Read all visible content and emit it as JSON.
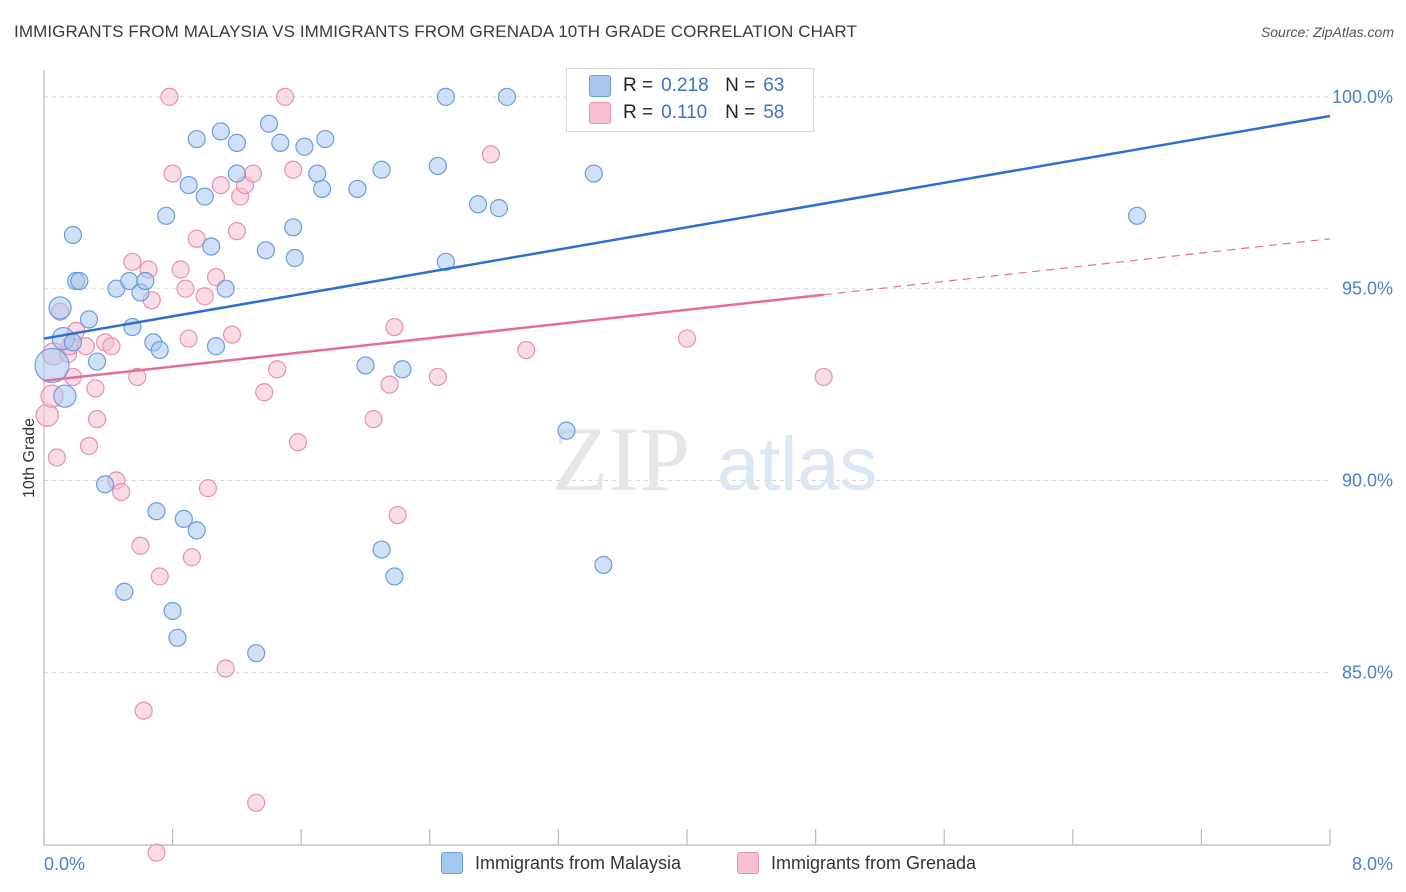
{
  "header": {
    "title": "IMMIGRANTS FROM MALAYSIA VS IMMIGRANTS FROM GRENADA 10TH GRADE CORRELATION CHART",
    "source": "Source: ZipAtlas.com"
  },
  "watermark": {
    "zip": "ZIP",
    "atlas": "atlas"
  },
  "legend": {
    "rows": [
      {
        "r_label": "R =",
        "r_value": "0.218",
        "n_label": "N =",
        "n_value": "63"
      },
      {
        "r_label": "R =",
        "r_value": "0.110",
        "n_label": "N =",
        "n_value": "58"
      }
    ]
  },
  "bottom_legend": {
    "malaysia": "Immigrants from Malaysia",
    "grenada": "Immigrants from Grenada"
  },
  "colors": {
    "malaysia_fill": "#a9c8f0",
    "malaysia_stroke": "#6a9de0",
    "malaysia_line": "#2f6fd0",
    "grenada_fill": "#f6bfd2",
    "grenada_stroke": "#e890b0",
    "grenada_line": "#e0709a",
    "tick_text": "#4a7fc9",
    "grid": "#d8d8d8"
  },
  "chart_data": {
    "type": "scatter",
    "title": "IMMIGRANTS FROM MALAYSIA VS IMMIGRANTS FROM GRENADA 10TH GRADE CORRELATION CHART",
    "xlabel": "",
    "ylabel": "10th Grade",
    "xlim": [
      0.0,
      8.0
    ],
    "ylim": [
      80.5,
      100.7
    ],
    "x_tick_labels": [
      "0.0%",
      "8.0%"
    ],
    "y_ticks": [
      85.0,
      90.0,
      95.0,
      100.0
    ],
    "y_tick_labels": [
      "85.0%",
      "90.0%",
      "95.0%",
      "100.0%"
    ],
    "grid": "horizontal dashed",
    "legend_position": "top-center",
    "series": [
      {
        "name": "Immigrants from Malaysia",
        "R": 0.218,
        "N": 63,
        "trend": {
          "x0": 0.0,
          "y0": 93.7,
          "x1": 8.0,
          "y1": 99.5,
          "solid_until": 8.0
        },
        "points": [
          [
            0.05,
            93.0,
            2.0
          ],
          [
            0.1,
            94.5,
            1.3
          ],
          [
            0.12,
            93.7,
            1.3
          ],
          [
            0.13,
            92.2,
            1.3
          ],
          [
            0.18,
            96.4,
            1
          ],
          [
            0.18,
            93.6,
            1
          ],
          [
            0.2,
            95.2,
            1
          ],
          [
            0.22,
            95.2,
            1
          ],
          [
            0.28,
            94.2,
            1
          ],
          [
            0.33,
            93.1,
            1
          ],
          [
            0.38,
            89.9,
            1
          ],
          [
            0.45,
            95.0,
            1
          ],
          [
            0.5,
            87.1,
            1
          ],
          [
            0.53,
            95.2,
            1
          ],
          [
            0.55,
            94.0,
            1
          ],
          [
            0.6,
            94.9,
            1
          ],
          [
            0.63,
            95.2,
            1
          ],
          [
            0.68,
            93.6,
            1
          ],
          [
            0.7,
            89.2,
            1
          ],
          [
            0.72,
            93.4,
            1
          ],
          [
            0.76,
            96.9,
            1
          ],
          [
            0.8,
            86.6,
            1
          ],
          [
            0.83,
            85.9,
            1
          ],
          [
            0.87,
            89.0,
            1
          ],
          [
            0.9,
            97.7,
            1
          ],
          [
            0.95,
            98.9,
            1
          ],
          [
            0.95,
            88.7,
            1
          ],
          [
            1.0,
            97.4,
            1
          ],
          [
            1.04,
            96.1,
            1
          ],
          [
            1.07,
            93.5,
            1
          ],
          [
            1.1,
            99.1,
            1
          ],
          [
            1.13,
            95.0,
            1
          ],
          [
            1.2,
            98.8,
            1
          ],
          [
            1.2,
            98.0,
            1
          ],
          [
            1.32,
            85.5,
            1
          ],
          [
            1.38,
            96.0,
            1
          ],
          [
            1.4,
            99.3,
            1
          ],
          [
            1.47,
            98.8,
            1
          ],
          [
            1.55,
            96.6,
            1
          ],
          [
            1.56,
            95.8,
            1
          ],
          [
            1.62,
            98.7,
            1
          ],
          [
            1.7,
            98.0,
            1
          ],
          [
            1.73,
            97.6,
            1
          ],
          [
            1.75,
            98.9,
            1
          ],
          [
            1.95,
            97.6,
            1
          ],
          [
            2.0,
            93.0,
            1
          ],
          [
            2.1,
            98.1,
            1
          ],
          [
            2.1,
            88.2,
            1
          ],
          [
            2.18,
            87.5,
            1
          ],
          [
            2.23,
            92.9,
            1
          ],
          [
            2.45,
            98.2,
            1
          ],
          [
            2.5,
            100.0,
            1
          ],
          [
            2.5,
            95.7,
            1
          ],
          [
            2.7,
            97.2,
            1
          ],
          [
            2.83,
            97.1,
            1
          ],
          [
            2.88,
            100.0,
            1
          ],
          [
            3.25,
            91.3,
            1
          ],
          [
            3.42,
            98.0,
            1
          ],
          [
            3.48,
            87.8,
            1
          ],
          [
            3.48,
            100.0,
            1
          ],
          [
            6.8,
            96.9,
            1
          ]
        ]
      },
      {
        "name": "Immigrants from Grenada",
        "R": 0.11,
        "N": 58,
        "trend": {
          "x0": 0.0,
          "y0": 92.6,
          "x1": 8.0,
          "y1": 96.3,
          "solid_until": 4.85
        },
        "points": [
          [
            0.02,
            91.7,
            1.3
          ],
          [
            0.05,
            92.2,
            1.3
          ],
          [
            0.06,
            93.3,
            1.3
          ],
          [
            0.08,
            90.6,
            1
          ],
          [
            0.1,
            94.4,
            1
          ],
          [
            0.15,
            93.3,
            1
          ],
          [
            0.16,
            93.5,
            1
          ],
          [
            0.18,
            92.7,
            1
          ],
          [
            0.2,
            93.9,
            1
          ],
          [
            0.26,
            93.5,
            1
          ],
          [
            0.28,
            90.9,
            1
          ],
          [
            0.32,
            92.4,
            1
          ],
          [
            0.33,
            91.6,
            1
          ],
          [
            0.38,
            93.6,
            1
          ],
          [
            0.42,
            93.5,
            1
          ],
          [
            0.45,
            90.0,
            1
          ],
          [
            0.48,
            89.7,
            1
          ],
          [
            0.55,
            95.7,
            1
          ],
          [
            0.58,
            92.7,
            1
          ],
          [
            0.6,
            88.3,
            1
          ],
          [
            0.62,
            84.0,
            1
          ],
          [
            0.65,
            95.5,
            1
          ],
          [
            0.67,
            94.7,
            1
          ],
          [
            0.7,
            80.3,
            1
          ],
          [
            0.72,
            87.5,
            1
          ],
          [
            0.78,
            100.0,
            1
          ],
          [
            0.8,
            98.0,
            1
          ],
          [
            0.85,
            95.5,
            1
          ],
          [
            0.88,
            95.0,
            1
          ],
          [
            0.9,
            93.7,
            1
          ],
          [
            0.92,
            88.0,
            1
          ],
          [
            0.95,
            96.3,
            1
          ],
          [
            1.0,
            94.8,
            1
          ],
          [
            1.02,
            89.8,
            1
          ],
          [
            1.07,
            95.3,
            1
          ],
          [
            1.1,
            97.7,
            1
          ],
          [
            1.13,
            85.1,
            1
          ],
          [
            1.17,
            93.8,
            1
          ],
          [
            1.2,
            96.5,
            1
          ],
          [
            1.22,
            97.4,
            1
          ],
          [
            1.25,
            97.7,
            1
          ],
          [
            1.3,
            98.0,
            1
          ],
          [
            1.32,
            81.6,
            1
          ],
          [
            1.37,
            92.3,
            1
          ],
          [
            1.45,
            92.9,
            1
          ],
          [
            1.5,
            100.0,
            1
          ],
          [
            1.55,
            98.1,
            1
          ],
          [
            1.58,
            91.0,
            1
          ],
          [
            2.05,
            91.6,
            1
          ],
          [
            2.15,
            92.5,
            1
          ],
          [
            2.18,
            94.0,
            1
          ],
          [
            2.2,
            89.1,
            1
          ],
          [
            2.45,
            92.7,
            1
          ],
          [
            2.78,
            98.5,
            1
          ],
          [
            3.0,
            93.4,
            1
          ],
          [
            4.0,
            93.7,
            1
          ],
          [
            4.85,
            92.7,
            1
          ]
        ]
      }
    ]
  }
}
